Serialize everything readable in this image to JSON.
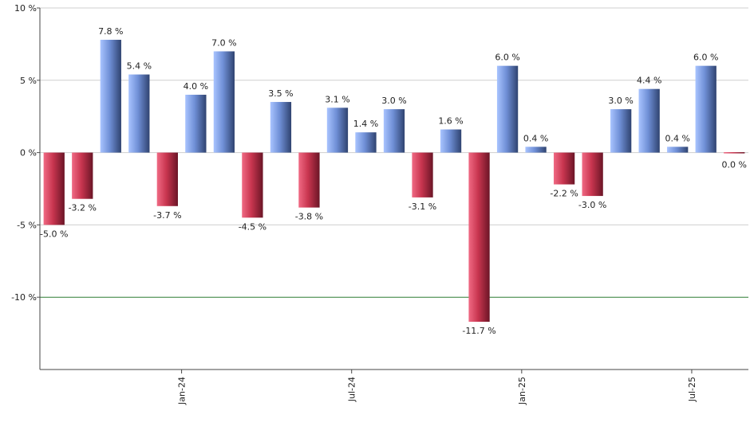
{
  "chart_data": {
    "type": "bar",
    "ylim": [
      -15,
      10
    ],
    "y_ticks": [
      {
        "value": 10,
        "label": "10 %"
      },
      {
        "value": 5,
        "label": "5 %"
      },
      {
        "value": 0,
        "label": "0 %"
      },
      {
        "value": -5,
        "label": "-5 %"
      },
      {
        "value": -10,
        "label": "-10 %"
      }
    ],
    "x_ticks": [
      {
        "after_index": 4,
        "label": "Jan-24"
      },
      {
        "after_index": 10,
        "label": "Jul-24"
      },
      {
        "after_index": 16,
        "label": "Jan-25"
      },
      {
        "after_index": 22,
        "label": "Jul-25"
      }
    ],
    "reference_line": {
      "value": -10,
      "color": "#2e7d32"
    },
    "grid": true,
    "colors": {
      "positive": "#6f8fd6",
      "negative": "#c8354f"
    },
    "values": [
      -5.0,
      -3.2,
      7.8,
      5.4,
      -3.7,
      4.0,
      7.0,
      -4.5,
      3.5,
      -3.8,
      3.1,
      1.4,
      3.0,
      -3.1,
      1.6,
      -11.7,
      6.0,
      0.4,
      -2.2,
      -3.0,
      3.0,
      4.4,
      0.4,
      6.0,
      0.0
    ],
    "labels": [
      "-5.0 %",
      "-3.2 %",
      "7.8 %",
      "5.4 %",
      "-3.7 %",
      "4.0 %",
      "7.0 %",
      "-4.5 %",
      "3.5 %",
      "-3.8 %",
      "3.1 %",
      "1.4 %",
      "3.0 %",
      "-3.1 %",
      "1.6 %",
      "-11.7 %",
      "6.0 %",
      "0.4 %",
      "-2.2 %",
      "-3.0 %",
      "3.0 %",
      "4.4 %",
      "0.4 %",
      "6.0 %",
      "0.0 %"
    ]
  }
}
